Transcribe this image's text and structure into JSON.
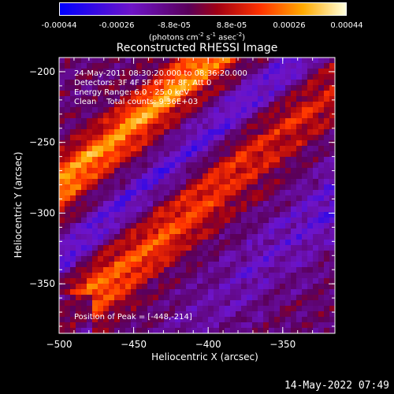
{
  "colorbar": {
    "ticks": [
      "-0.00044",
      "-0.00026",
      "-8.8e-05",
      "8.8e-05",
      "0.00026",
      "0.00044"
    ],
    "units_prefix": "(photons cm",
    "units_exp1": "-2",
    "units_mid": " s",
    "units_exp2": "-1",
    "units_mid2": " asec",
    "units_exp3": "-2",
    "units_suffix": ")",
    "range": [
      -0.00044,
      0.00044
    ]
  },
  "chart_data": {
    "type": "heatmap",
    "title": "Reconstructed RHESSI Image",
    "xlabel": "Heliocentric X (arcsec)",
    "ylabel": "Heliocentric Y (arcsec)",
    "xlim": [
      -500,
      -315
    ],
    "ylim": [
      -385,
      -190
    ],
    "x_ticks": [
      -500,
      -450,
      -400,
      -350
    ],
    "x_tick_labels": [
      "−500",
      "−450",
      "−400",
      "−350"
    ],
    "y_ticks": [
      -200,
      -250,
      -300,
      -350
    ],
    "y_tick_labels": [
      "−200",
      "−250",
      "−300",
      "−350"
    ],
    "colormap": "blue-purple-red-yellow-white",
    "peak_position": [
      -448,
      -214
    ]
  },
  "info": {
    "time": "24-May-2011 08:30:20.000 to 08:36:20.000",
    "detectors": "Detectors: 3F 4F 5F 6F 7F 8F, Att 0",
    "energy": "Energy Range: 6.0 - 25.0 keV",
    "clean": "Clean    Total counts: 9.36E+03"
  },
  "peak_label": "Position of Peak = [-448,-214]",
  "timestamp": "14-May-2022 07:49"
}
